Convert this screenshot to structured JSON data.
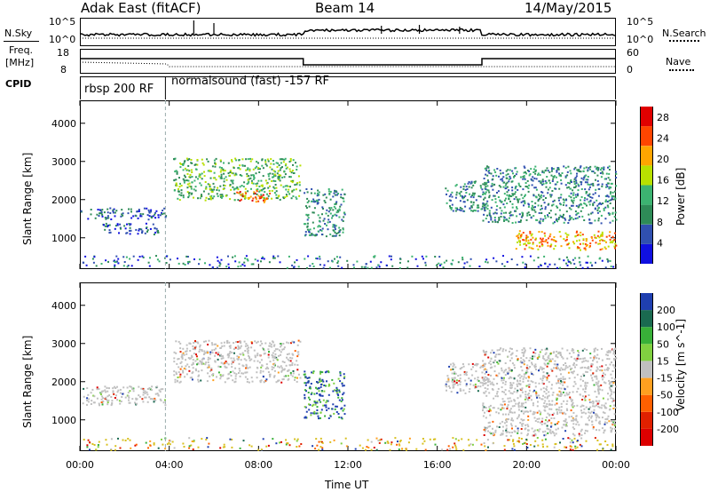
{
  "header": {
    "station": "Adak East (fitACF)",
    "beam": "Beam 14",
    "date": "14/May/2015"
  },
  "top_panels": {
    "nsky_label": "N.Sky",
    "nsky_tick_hi": "10^5",
    "nsky_tick_lo": "10^0",
    "nsearch_label": "N.Search",
    "nsearch_tick_hi": "10^5",
    "nsearch_tick_lo": "10^0",
    "freq_label_1": "Freq.",
    "freq_label_2": "[MHz]",
    "freq_tick_hi": "18",
    "freq_tick_lo": "8",
    "nave_label": "Nave",
    "nave_tick_hi": "60",
    "nave_tick_lo": "0",
    "cpid_label": "CPID",
    "cpid_segment_1": "rbsp 200 RF",
    "cpid_segment_2": "normalsound (fast) -157 RF"
  },
  "chart_data": [
    {
      "type": "heatmap",
      "title": "",
      "xlabel": "Time UT",
      "ylabel": "Slant Range [km]",
      "x_ticks": [
        "00:00",
        "04:00",
        "08:00",
        "12:00",
        "16:00",
        "20:00",
        "00:00"
      ],
      "y_ticks": [
        1000,
        2000,
        3000,
        4000
      ],
      "ylim": [
        180,
        4600
      ],
      "colorbar": {
        "label": "Power [dB]",
        "ticks": [
          4,
          8,
          12,
          16,
          20,
          24,
          28
        ],
        "range": [
          0,
          30
        ],
        "colors": [
          "#1010e0",
          "#3050b0",
          "#2e8b57",
          "#3cb371",
          "#b8e000",
          "#ffa500",
          "#ff4500",
          "#e00000"
        ]
      },
      "scatter_regions": [
        {
          "name": "echo band near range",
          "t_start": "00:00",
          "t_end": "03:50",
          "range_km": [
            1500,
            1800
          ],
          "power_db": 6
        },
        {
          "name": "echo band mid",
          "t_start": "01:00",
          "t_end": "03:30",
          "range_km": [
            1100,
            1400
          ],
          "power_db": 6
        },
        {
          "name": "morning scatter",
          "t_start": "04:10",
          "t_end": "09:50",
          "range_km": [
            2000,
            3100
          ],
          "power_db": 14
        },
        {
          "name": "morning peak",
          "t_start": "07:00",
          "t_end": "08:30",
          "range_km": [
            1950,
            2250
          ],
          "power_db": 24
        },
        {
          "name": "descending streak",
          "t_start": "10:00",
          "t_end": "11:50",
          "range_km": [
            1050,
            2300
          ],
          "power_db": 10
        },
        {
          "name": "afternoon band",
          "t_start": "16:20",
          "t_end": "18:10",
          "range_km": [
            1700,
            2500
          ],
          "power_db": 10
        },
        {
          "name": "evening multi-band",
          "t_start": "18:00",
          "t_end": "23:59",
          "range_km": [
            1400,
            2900
          ],
          "power_db": 10
        },
        {
          "name": "evening lower band",
          "t_start": "19:30",
          "t_end": "23:59",
          "range_km": [
            700,
            1200
          ],
          "power_db": 20
        }
      ]
    },
    {
      "type": "heatmap",
      "title": "",
      "xlabel": "Time UT",
      "ylabel": "Slant Range [km]",
      "x_ticks": [
        "00:00",
        "04:00",
        "08:00",
        "12:00",
        "16:00",
        "20:00",
        "00:00"
      ],
      "y_ticks": [
        1000,
        2000,
        3000,
        4000
      ],
      "ylim": [
        180,
        4600
      ],
      "colorbar": {
        "label": "Velocity [m s^-1]",
        "ticks": [
          "200",
          "100",
          "50",
          "15",
          "-15",
          "-50",
          "-100",
          "-200"
        ],
        "range": [
          -250,
          250
        ],
        "colors": [
          "#1f3fb0",
          "#1a6a50",
          "#38b038",
          "#80d040",
          "#c0c0c0",
          "#ffa020",
          "#ff6000",
          "#e02000",
          "#dd0000"
        ]
      },
      "scatter_regions": [
        {
          "name": "ground scatter arc",
          "t_start": "00:00",
          "t_end": "03:50",
          "range_km": [
            1400,
            1900
          ],
          "velocity": 0
        },
        {
          "name": "ground scatter morning",
          "t_start": "04:10",
          "t_end": "09:50",
          "range_km": [
            2000,
            3100
          ],
          "velocity": 0
        },
        {
          "name": "streak toward radar",
          "t_start": "10:00",
          "t_end": "11:50",
          "range_km": [
            1050,
            2300
          ],
          "velocity": 80
        },
        {
          "name": "afternoon ground scatter",
          "t_start": "16:20",
          "t_end": "18:10",
          "range_km": [
            1700,
            2500
          ],
          "velocity": 0
        },
        {
          "name": "evening scatter",
          "t_start": "18:00",
          "t_end": "23:59",
          "range_km": [
            600,
            2900
          ],
          "velocity": 5
        }
      ]
    }
  ]
}
